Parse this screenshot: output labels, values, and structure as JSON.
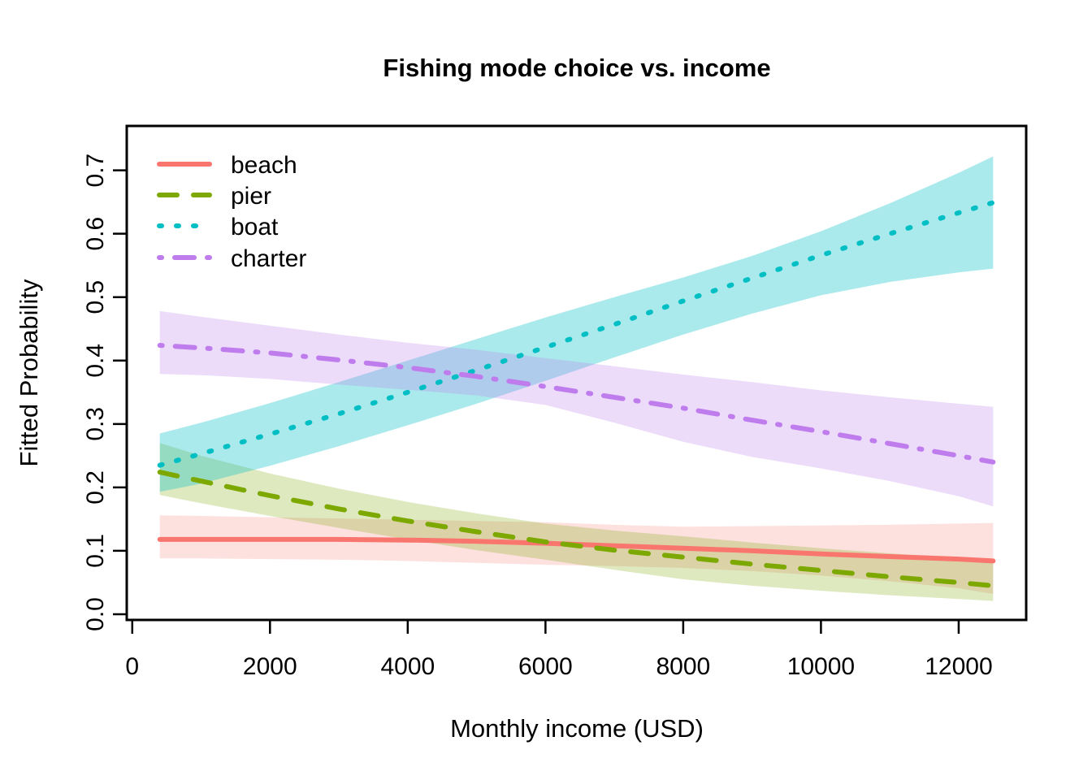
{
  "page": {
    "background": "#FFFFFF"
  },
  "chart_data": {
    "type": "line",
    "title": "Fishing mode choice vs. income",
    "xlabel": "Monthly income (USD)",
    "ylabel": "Fitted Probability",
    "xlim": [
      -80,
      12980
    ],
    "ylim": [
      -0.009,
      0.77
    ],
    "grid": false,
    "legend": {
      "position": "top-left",
      "frame": false,
      "entries": [
        "beach",
        "pier",
        "boat",
        "charter"
      ]
    },
    "x_axis": {
      "tick_values": [
        0,
        2000,
        4000,
        6000,
        8000,
        10000,
        12000
      ],
      "tick_labels": [
        "0",
        "2000",
        "4000",
        "6000",
        "8000",
        "10000",
        "12000"
      ]
    },
    "y_axis": {
      "tick_values": [
        0.0,
        0.1,
        0.2,
        0.3,
        0.4,
        0.5,
        0.6,
        0.7
      ],
      "tick_labels": [
        "0.0",
        "0.1",
        "0.2",
        "0.3",
        "0.4",
        "0.5",
        "0.6",
        "0.7"
      ]
    },
    "x": [
      400,
      1000,
      2000,
      3000,
      4000,
      5000,
      6000,
      7000,
      8000,
      9000,
      10000,
      11000,
      12000,
      12500
    ],
    "series": [
      {
        "name": "beach",
        "color": "#F8766D",
        "band_color": "rgba(248,118,109,0.22)",
        "linetype": "solid",
        "values": [
          0.118,
          0.118,
          0.118,
          0.118,
          0.117,
          0.115,
          0.112,
          0.108,
          0.104,
          0.1,
          0.095,
          0.091,
          0.087,
          0.084
        ],
        "band_lower": [
          0.088,
          0.088,
          0.087,
          0.086,
          0.084,
          0.081,
          0.078,
          0.076,
          0.073,
          0.068,
          0.061,
          0.052,
          0.041,
          0.032
        ],
        "band_upper": [
          0.156,
          0.155,
          0.153,
          0.151,
          0.149,
          0.147,
          0.145,
          0.141,
          0.138,
          0.139,
          0.14,
          0.141,
          0.143,
          0.144
        ]
      },
      {
        "name": "pier",
        "color": "#7CA800",
        "band_color": "rgba(124,168,0,0.25)",
        "linetype": "dashed",
        "values": [
          0.224,
          0.21,
          0.187,
          0.166,
          0.147,
          0.13,
          0.114,
          0.101,
          0.09,
          0.079,
          0.069,
          0.059,
          0.05,
          0.045
        ],
        "band_lower": [
          0.188,
          0.175,
          0.155,
          0.136,
          0.118,
          0.101,
          0.086,
          0.07,
          0.055,
          0.045,
          0.037,
          0.03,
          0.024,
          0.021
        ],
        "band_upper": [
          0.27,
          0.25,
          0.222,
          0.198,
          0.177,
          0.159,
          0.143,
          0.132,
          0.123,
          0.113,
          0.104,
          0.096,
          0.088,
          0.084
        ]
      },
      {
        "name": "boat",
        "color": "#00BFC4",
        "band_color": "rgba(0,191,196,0.33)",
        "linetype": "dotted",
        "values": [
          0.235,
          0.253,
          0.284,
          0.316,
          0.35,
          0.385,
          0.421,
          0.457,
          0.494,
          0.53,
          0.566,
          0.6,
          0.633,
          0.649
        ],
        "band_lower": [
          0.193,
          0.206,
          0.234,
          0.265,
          0.298,
          0.332,
          0.368,
          0.405,
          0.441,
          0.474,
          0.503,
          0.524,
          0.539,
          0.545
        ],
        "band_upper": [
          0.285,
          0.302,
          0.333,
          0.366,
          0.4,
          0.434,
          0.468,
          0.5,
          0.531,
          0.565,
          0.604,
          0.648,
          0.696,
          0.722
        ]
      },
      {
        "name": "charter",
        "color": "#BE7CEC",
        "band_color": "rgba(190,124,236,0.28)",
        "linetype": "dotdash",
        "values": [
          0.424,
          0.42,
          0.412,
          0.401,
          0.389,
          0.375,
          0.359,
          0.342,
          0.325,
          0.306,
          0.288,
          0.269,
          0.25,
          0.24
        ],
        "band_lower": [
          0.379,
          0.377,
          0.371,
          0.362,
          0.354,
          0.345,
          0.33,
          0.302,
          0.272,
          0.248,
          0.23,
          0.21,
          0.186,
          0.17
        ],
        "band_upper": [
          0.478,
          0.469,
          0.455,
          0.441,
          0.428,
          0.417,
          0.404,
          0.391,
          0.378,
          0.366,
          0.353,
          0.342,
          0.332,
          0.327
        ]
      }
    ]
  }
}
